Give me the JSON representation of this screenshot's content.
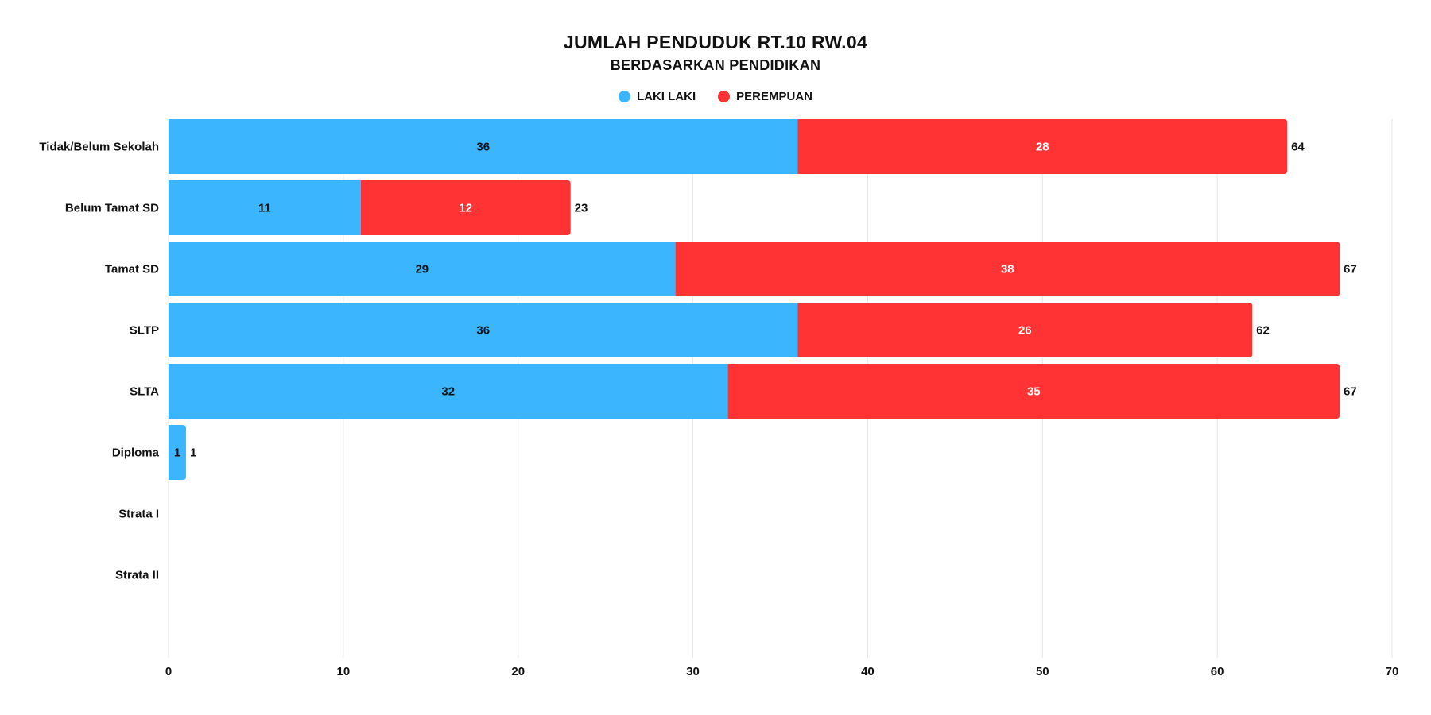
{
  "chart_data": {
    "type": "bar",
    "orientation": "horizontal",
    "stacked": true,
    "title": "JUMLAH PENDUDUK RT.10 RW.04",
    "subtitle": "BERDASARKAN PENDIDIKAN",
    "categories": [
      "Tidak/Belum Sekolah",
      "Belum Tamat SD",
      "Tamat SD",
      "SLTP",
      "SLTA",
      "Diploma",
      "Strata I",
      "Strata II"
    ],
    "series": [
      {
        "name": "LAKI LAKI",
        "color": "#3bb5fd",
        "label_color": "#111111",
        "values": [
          36,
          11,
          29,
          36,
          32,
          1,
          0,
          0
        ]
      },
      {
        "name": "PEREMPUAN",
        "color": "#ff3333",
        "label_color": "#ffffff",
        "values": [
          28,
          12,
          38,
          26,
          35,
          0,
          0,
          0
        ]
      }
    ],
    "totals": [
      64,
      23,
      67,
      62,
      67,
      1,
      null,
      null
    ],
    "xlim": [
      0,
      70
    ],
    "xticks": [
      0,
      10,
      20,
      30,
      40,
      50,
      60,
      70
    ],
    "grid": true,
    "legend_position": "top-center"
  }
}
